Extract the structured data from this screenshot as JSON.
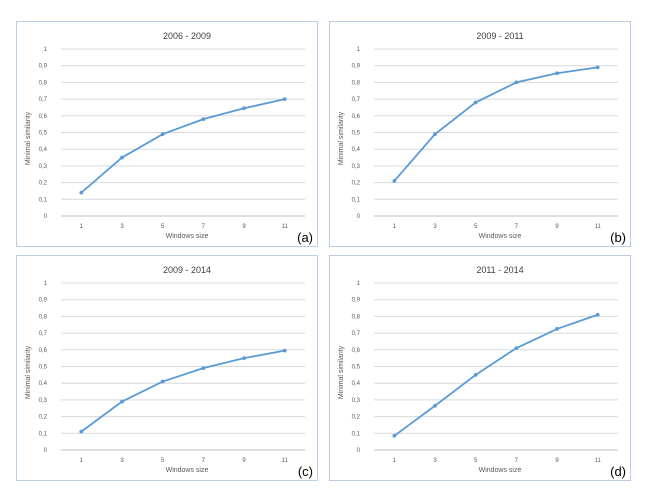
{
  "colors": {
    "series": "#5b9bd5",
    "border": "#b9cde5"
  },
  "chart_data": [
    {
      "type": "line",
      "panel_label": "(a)",
      "title": "2006 - 2009",
      "xlabel": "Windows size",
      "ylabel": "Minimal similarity",
      "categories": [
        "1",
        "3",
        "5",
        "7",
        "9",
        "11"
      ],
      "values": [
        0.14,
        0.35,
        0.49,
        0.58,
        0.645,
        0.7
      ],
      "ylim": [
        0,
        1
      ],
      "yticks": [
        "0",
        "0,1",
        "0,2",
        "0,3",
        "0,4",
        "0,5",
        "0,6",
        "0,7",
        "0,8",
        "0,9",
        "1"
      ],
      "grid": true,
      "legend": "none"
    },
    {
      "type": "line",
      "panel_label": "(b)",
      "title": "2009 - 2011",
      "xlabel": "Windows size",
      "ylabel": "Minimal similarity",
      "categories": [
        "1",
        "3",
        "5",
        "7",
        "9",
        "11"
      ],
      "values": [
        0.21,
        0.49,
        0.68,
        0.8,
        0.855,
        0.89
      ],
      "ylim": [
        0,
        1
      ],
      "yticks": [
        "0",
        "0,1",
        "0,2",
        "0,3",
        "0,4",
        "0,5",
        "0,6",
        "0,7",
        "0,8",
        "0,9",
        "1"
      ],
      "grid": true,
      "legend": "none"
    },
    {
      "type": "line",
      "panel_label": "(c)",
      "title": "2009 - 2014",
      "xlabel": "Windows size",
      "ylabel": "Minimal similarity",
      "categories": [
        "1",
        "3",
        "5",
        "7",
        "9",
        "11"
      ],
      "values": [
        0.11,
        0.29,
        0.41,
        0.49,
        0.55,
        0.595
      ],
      "ylim": [
        0,
        1
      ],
      "yticks": [
        "0",
        "0,1",
        "0,2",
        "0,3",
        "0,4",
        "0,5",
        "0,6",
        "0,7",
        "0,8",
        "0,9",
        "1"
      ],
      "grid": true,
      "legend": "none"
    },
    {
      "type": "line",
      "panel_label": "(d)",
      "title": "2011 - 2014",
      "xlabel": "Windows size",
      "ylabel": "Minimal similarity",
      "categories": [
        "1",
        "3",
        "5",
        "7",
        "9",
        "11"
      ],
      "values": [
        0.085,
        0.265,
        0.45,
        0.61,
        0.725,
        0.81
      ],
      "ylim": [
        0,
        1
      ],
      "yticks": [
        "0",
        "0,1",
        "0,2",
        "0,3",
        "0,4",
        "0,5",
        "0,6",
        "0,7",
        "0,8",
        "0,9",
        "1"
      ],
      "grid": true,
      "legend": "none"
    }
  ]
}
